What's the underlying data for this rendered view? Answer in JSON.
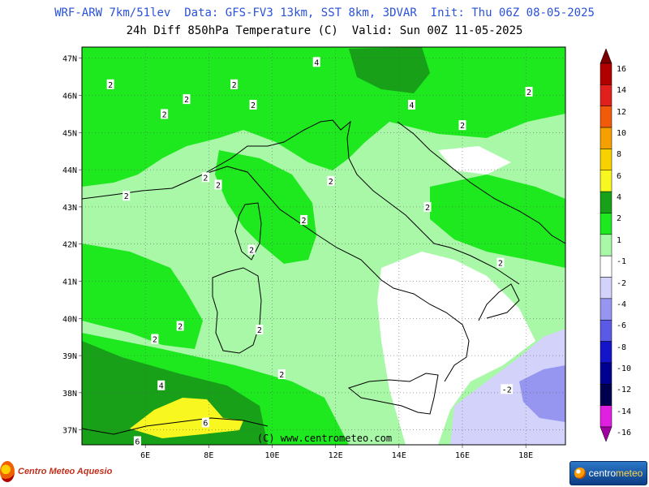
{
  "header": {
    "line1": "WRF-ARW 7km/51lev  Data: GFS-FV3 13km, SST 8km, 3DVAR  Init: Thu 06Z 08-05-2025",
    "line2": "24h Diff 850hPa Temperature (C)  Valid: Sun 00Z 11-05-2025"
  },
  "lat_labels": [
    "47N",
    "46N",
    "45N",
    "44N",
    "43N",
    "42N",
    "41N",
    "40N",
    "39N",
    "38N",
    "37N"
  ],
  "lon_labels": [
    "6E",
    "8E",
    "10E",
    "12E",
    "14E",
    "16E",
    "18E"
  ],
  "copyright": "(C) www.centrometeo.com",
  "colorbar": {
    "labels": [
      "16",
      "14",
      "12",
      "10",
      "8",
      "6",
      "4",
      "2",
      "1",
      "-1",
      "-2",
      "-4",
      "-6",
      "-8",
      "-10",
      "-12",
      "-14",
      "-16"
    ],
    "colors": [
      "#7a0000",
      "#b00000",
      "#e0201c",
      "#f05a0a",
      "#f5a000",
      "#f8d200",
      "#f8f820",
      "#18a018",
      "#1ee81e",
      "#a8f8a8",
      "#ffffff",
      "#d2d2fa",
      "#9696f0",
      "#5a5ae6",
      "#1414c8",
      "#000090",
      "#000050",
      "#e020e0",
      "#a000a0"
    ]
  },
  "contour_labels": [
    {
      "text": "2",
      "lon": 4.9,
      "lat": 46.3
    },
    {
      "text": "2",
      "lon": 7.3,
      "lat": 45.9
    },
    {
      "text": "2",
      "lon": 6.6,
      "lat": 45.5
    },
    {
      "text": "2",
      "lon": 8.8,
      "lat": 46.3
    },
    {
      "text": "2",
      "lon": 9.4,
      "lat": 45.75
    },
    {
      "text": "4",
      "lon": 11.4,
      "lat": 46.9
    },
    {
      "text": "4",
      "lon": 14.4,
      "lat": 45.75
    },
    {
      "text": "2",
      "lon": 16.0,
      "lat": 45.2
    },
    {
      "text": "2",
      "lon": 18.1,
      "lat": 46.1
    },
    {
      "text": "2",
      "lon": 7.9,
      "lat": 43.8
    },
    {
      "text": "2",
      "lon": 8.3,
      "lat": 43.6
    },
    {
      "text": "2",
      "lon": 5.4,
      "lat": 43.3
    },
    {
      "text": "2",
      "lon": 11.85,
      "lat": 43.7
    },
    {
      "text": "2",
      "lon": 11.0,
      "lat": 42.65
    },
    {
      "text": "2",
      "lon": 14.9,
      "lat": 43.0
    },
    {
      "text": "2",
      "lon": 9.35,
      "lat": 41.85
    },
    {
      "text": "2",
      "lon": 17.2,
      "lat": 41.5
    },
    {
      "text": "2",
      "lon": 7.1,
      "lat": 39.8
    },
    {
      "text": "2",
      "lon": 9.6,
      "lat": 39.7
    },
    {
      "text": "2",
      "lon": 6.3,
      "lat": 39.45
    },
    {
      "text": "2",
      "lon": 10.3,
      "lat": 38.5
    },
    {
      "text": "4",
      "lon": 6.5,
      "lat": 38.2
    },
    {
      "text": "6",
      "lon": 7.9,
      "lat": 37.2
    },
    {
      "text": "6",
      "lon": 5.75,
      "lat": 36.7
    },
    {
      "text": "-2",
      "lon": 17.4,
      "lat": 38.1
    }
  ],
  "logos": {
    "left": "Centro Meteo Aquesio",
    "right_a": "centro",
    "right_b": "meteo"
  }
}
